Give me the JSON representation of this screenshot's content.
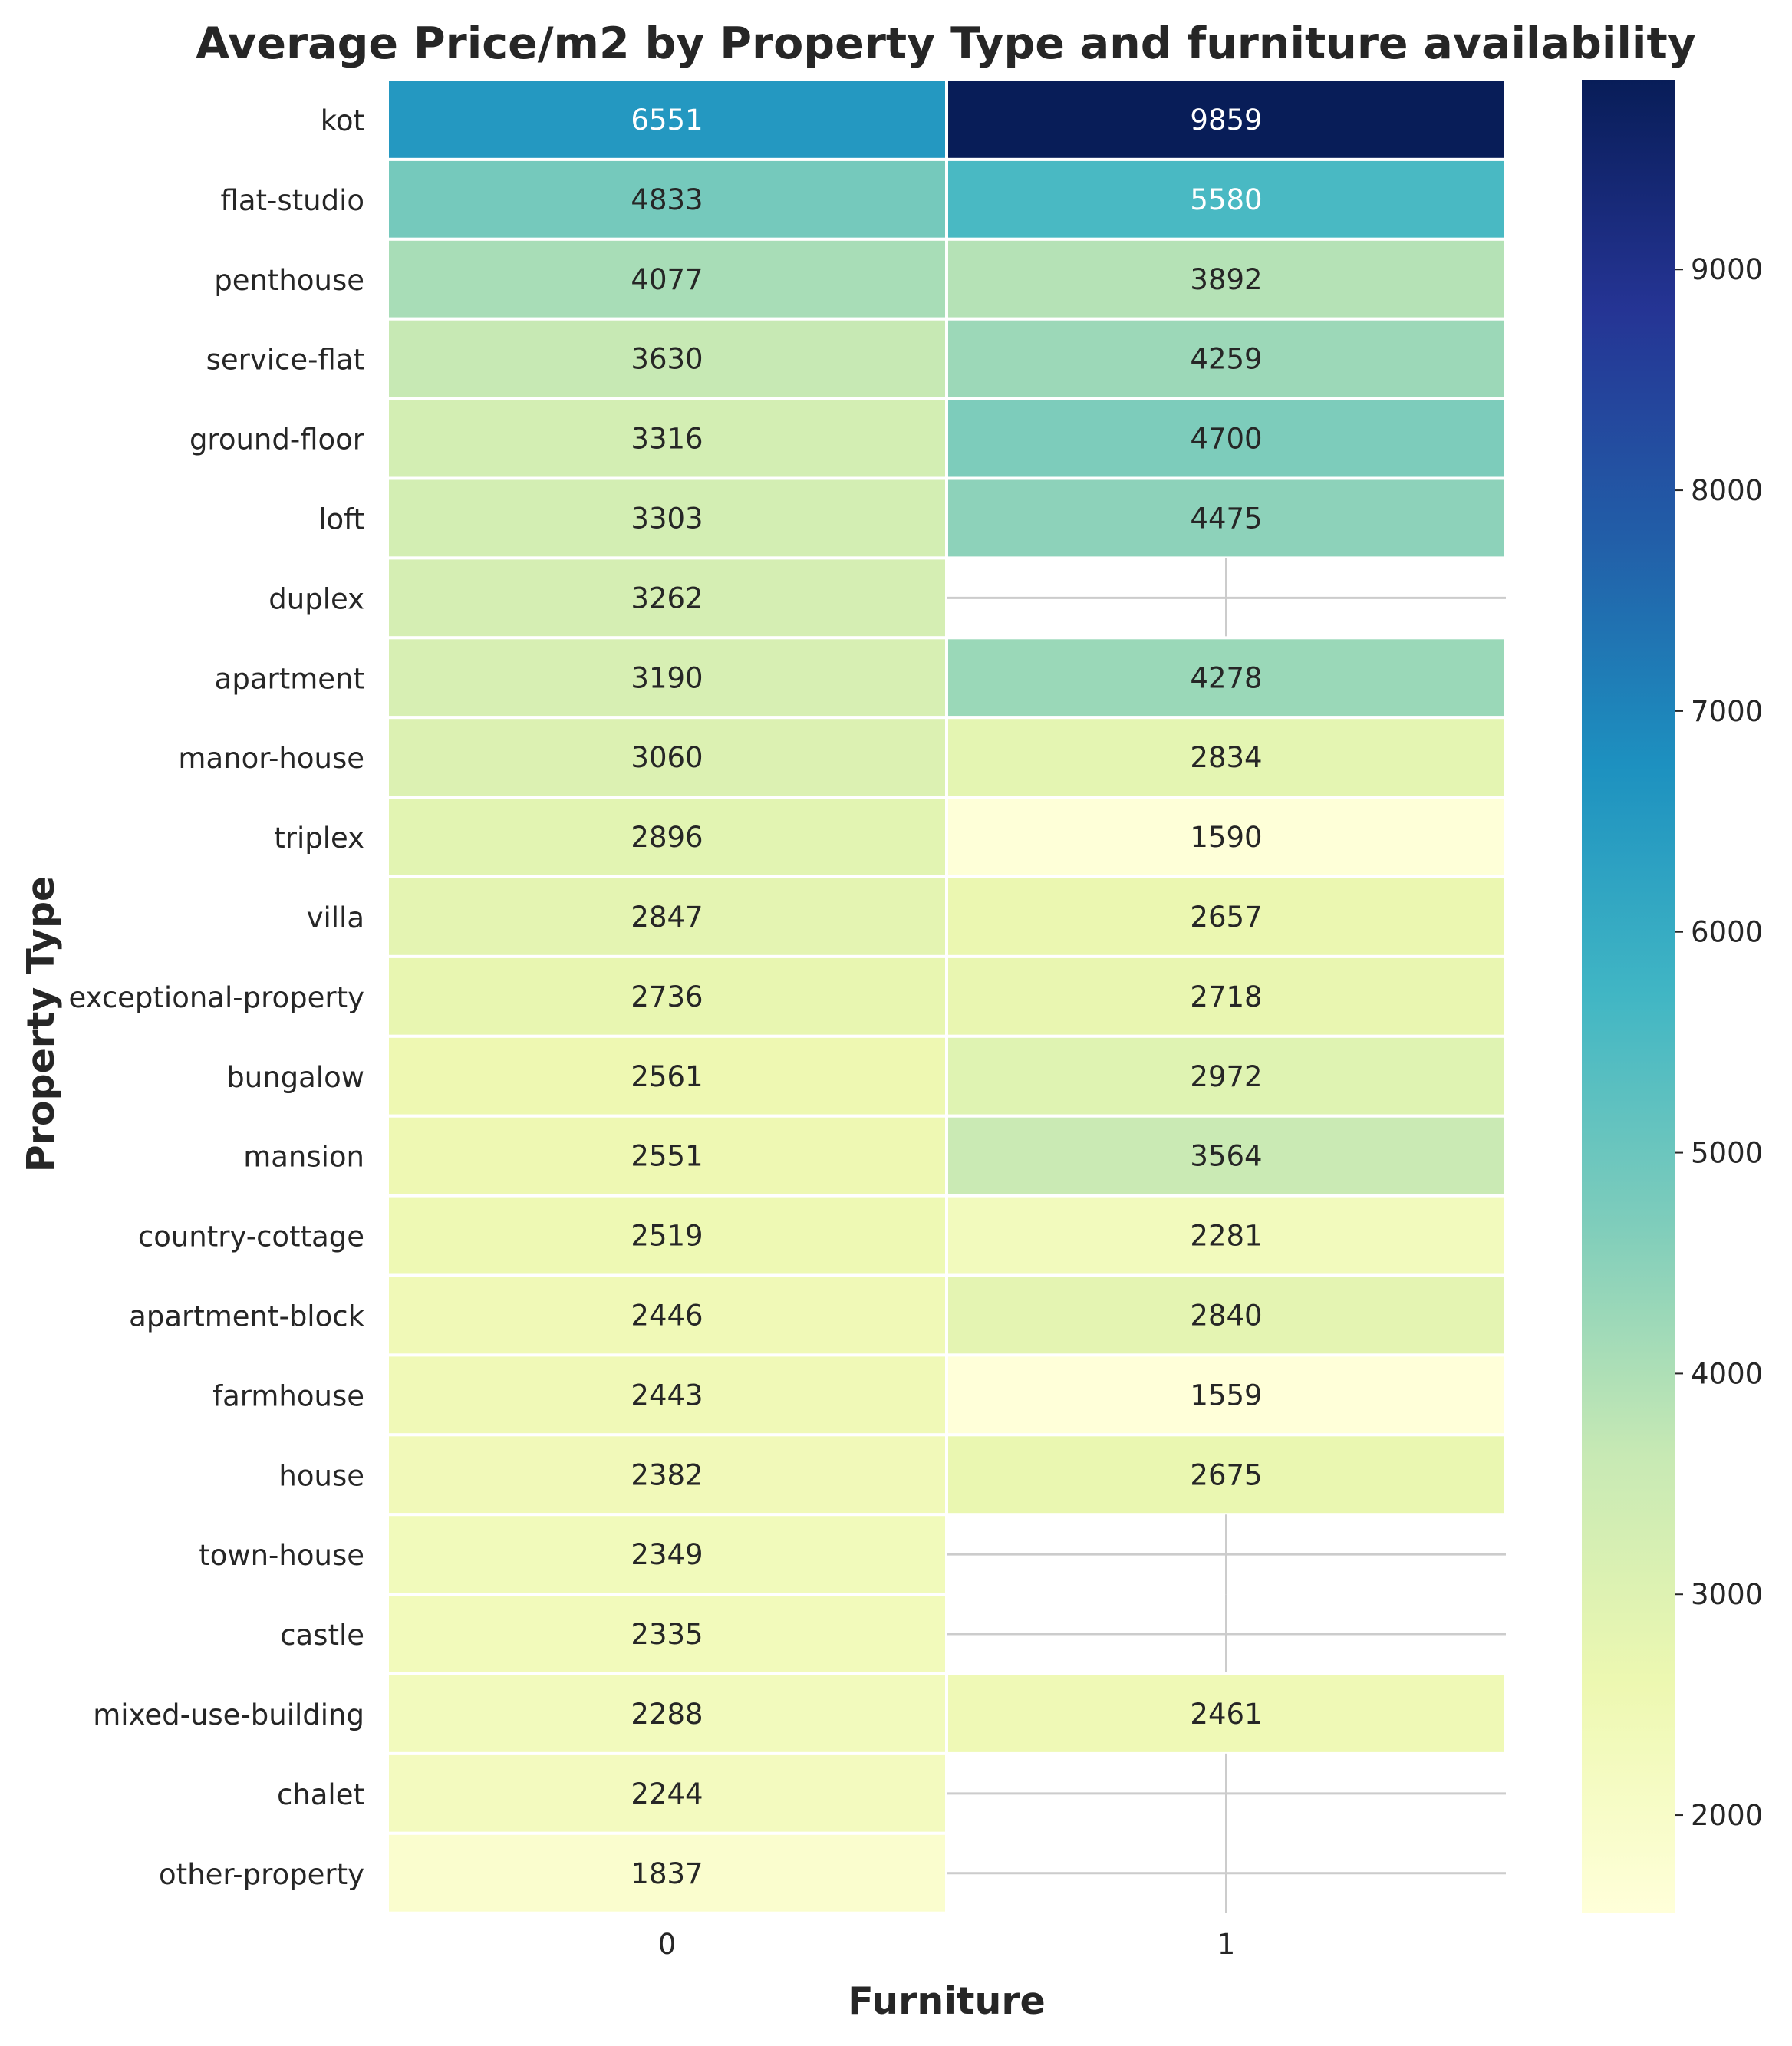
{
  "chart_data": {
    "type": "heatmap",
    "title": "Average Price/m2 by Property Type and furniture availability",
    "xlabel": "Furniture",
    "ylabel": "Property Type",
    "x_categories": [
      "0",
      "1"
    ],
    "y_categories": [
      "kot",
      "flat-studio",
      "penthouse",
      "service-flat",
      "ground-floor",
      "loft",
      "duplex",
      "apartment",
      "manor-house",
      "triplex",
      "villa",
      "exceptional-property",
      "bungalow",
      "mansion",
      "country-cottage",
      "apartment-block",
      "farmhouse",
      "house",
      "town-house",
      "castle",
      "mixed-use-building",
      "chalet",
      "other-property"
    ],
    "values": [
      [
        6551,
        9859
      ],
      [
        4833,
        5580
      ],
      [
        4077,
        3892
      ],
      [
        3630,
        4259
      ],
      [
        3316,
        4700
      ],
      [
        3303,
        4475
      ],
      [
        3262,
        null
      ],
      [
        3190,
        4278
      ],
      [
        3060,
        2834
      ],
      [
        2896,
        1590
      ],
      [
        2847,
        2657
      ],
      [
        2736,
        2718
      ],
      [
        2561,
        2972
      ],
      [
        2551,
        3564
      ],
      [
        2519,
        2281
      ],
      [
        2446,
        2840
      ],
      [
        2443,
        1559
      ],
      [
        2382,
        2675
      ],
      [
        2349,
        null
      ],
      [
        2335,
        null
      ],
      [
        2288,
        2461
      ],
      [
        2244,
        null
      ],
      [
        1837,
        null
      ]
    ],
    "colorbar": {
      "min": 1559,
      "max": 9859,
      "ticks": [
        2000,
        3000,
        4000,
        5000,
        6000,
        7000,
        8000,
        9000
      ]
    },
    "colormap": "YlGnBu",
    "colormap_stops": [
      "#ffffd9",
      "#edf8b1",
      "#c7e9b4",
      "#7fcdbb",
      "#41b6c4",
      "#1d91c0",
      "#225ea8",
      "#253494",
      "#081d58"
    ]
  }
}
